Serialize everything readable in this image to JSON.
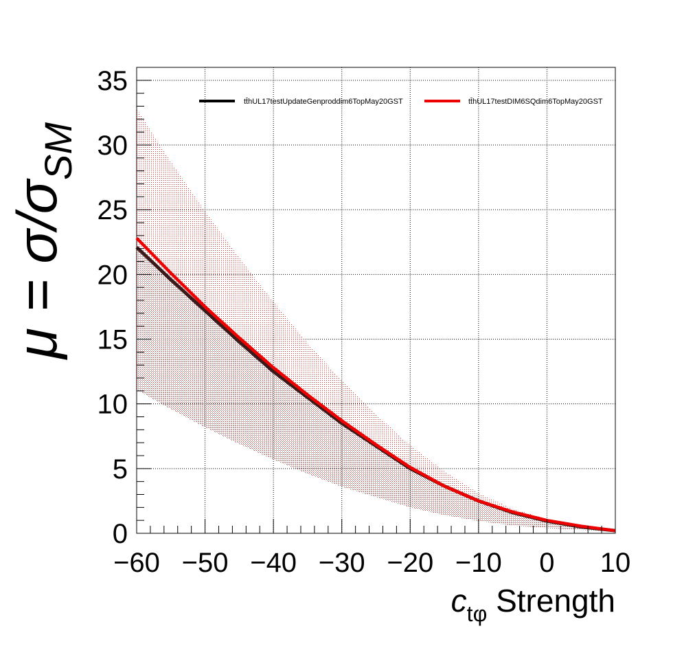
{
  "chart_data": {
    "type": "line",
    "title": "",
    "xlabel_main": "c",
    "xlabel_sub": "tφ",
    "xlabel_rest": " Strength",
    "ylabel_mu": "μ = σ/σ",
    "ylabel_sub": "SM",
    "xlim": [
      -60,
      10
    ],
    "ylim": [
      0,
      36
    ],
    "grid": true,
    "legend_placement": "top",
    "x_ticks": [
      -60,
      -50,
      -40,
      -30,
      -20,
      -10,
      0,
      10
    ],
    "x_tick_labels": [
      "−60",
      "−50",
      "−40",
      "−30",
      "−20",
      "−10",
      "0",
      "10"
    ],
    "y_ticks": [
      0,
      5,
      10,
      15,
      20,
      25,
      30,
      35
    ],
    "y_tick_labels": [
      "0",
      "5",
      "10",
      "15",
      "20",
      "25",
      "30",
      "35"
    ],
    "x": [
      -60,
      -55,
      -50,
      -45,
      -40,
      -35,
      -30,
      -25,
      -20,
      -15,
      -10,
      -5,
      0,
      5,
      10
    ],
    "series": [
      {
        "name": "tt̄hUL17testUpdateGenproddim6TopMay20GST",
        "color": "#000000",
        "values": [
          22.1,
          19.6,
          17.2,
          14.8,
          12.5,
          10.5,
          8.5,
          6.75,
          5.0,
          3.65,
          2.5,
          1.6,
          0.95,
          0.5,
          0.2
        ],
        "band_low": [
          11.1,
          9.6,
          8.2,
          6.9,
          5.7,
          4.6,
          3.6,
          2.8,
          2.0,
          1.4,
          0.95,
          0.6,
          0.4,
          0.25,
          0.15
        ],
        "band_high": [
          22.1,
          19.6,
          17.2,
          14.8,
          12.5,
          10.5,
          8.5,
          6.75,
          5.0,
          3.65,
          2.5,
          1.6,
          0.95,
          0.5,
          0.2
        ]
      },
      {
        "name": "tt̄hUL17testDIM6SQdim6TopMay20GST",
        "color": "#ee0000",
        "values": [
          22.8,
          20.1,
          17.5,
          15.1,
          12.8,
          10.7,
          8.7,
          6.85,
          5.1,
          3.65,
          2.5,
          1.65,
          1.0,
          0.55,
          0.2
        ],
        "band_low": [
          11.1,
          9.6,
          8.2,
          6.9,
          5.7,
          4.6,
          3.6,
          2.8,
          2.0,
          1.4,
          0.95,
          0.6,
          0.4,
          0.25,
          0.15
        ],
        "band_high": [
          32.8,
          28.7,
          24.9,
          21.3,
          17.9,
          14.7,
          11.8,
          9.2,
          6.8,
          4.8,
          3.1,
          1.9,
          1.1,
          0.55,
          0.2
        ]
      }
    ]
  }
}
